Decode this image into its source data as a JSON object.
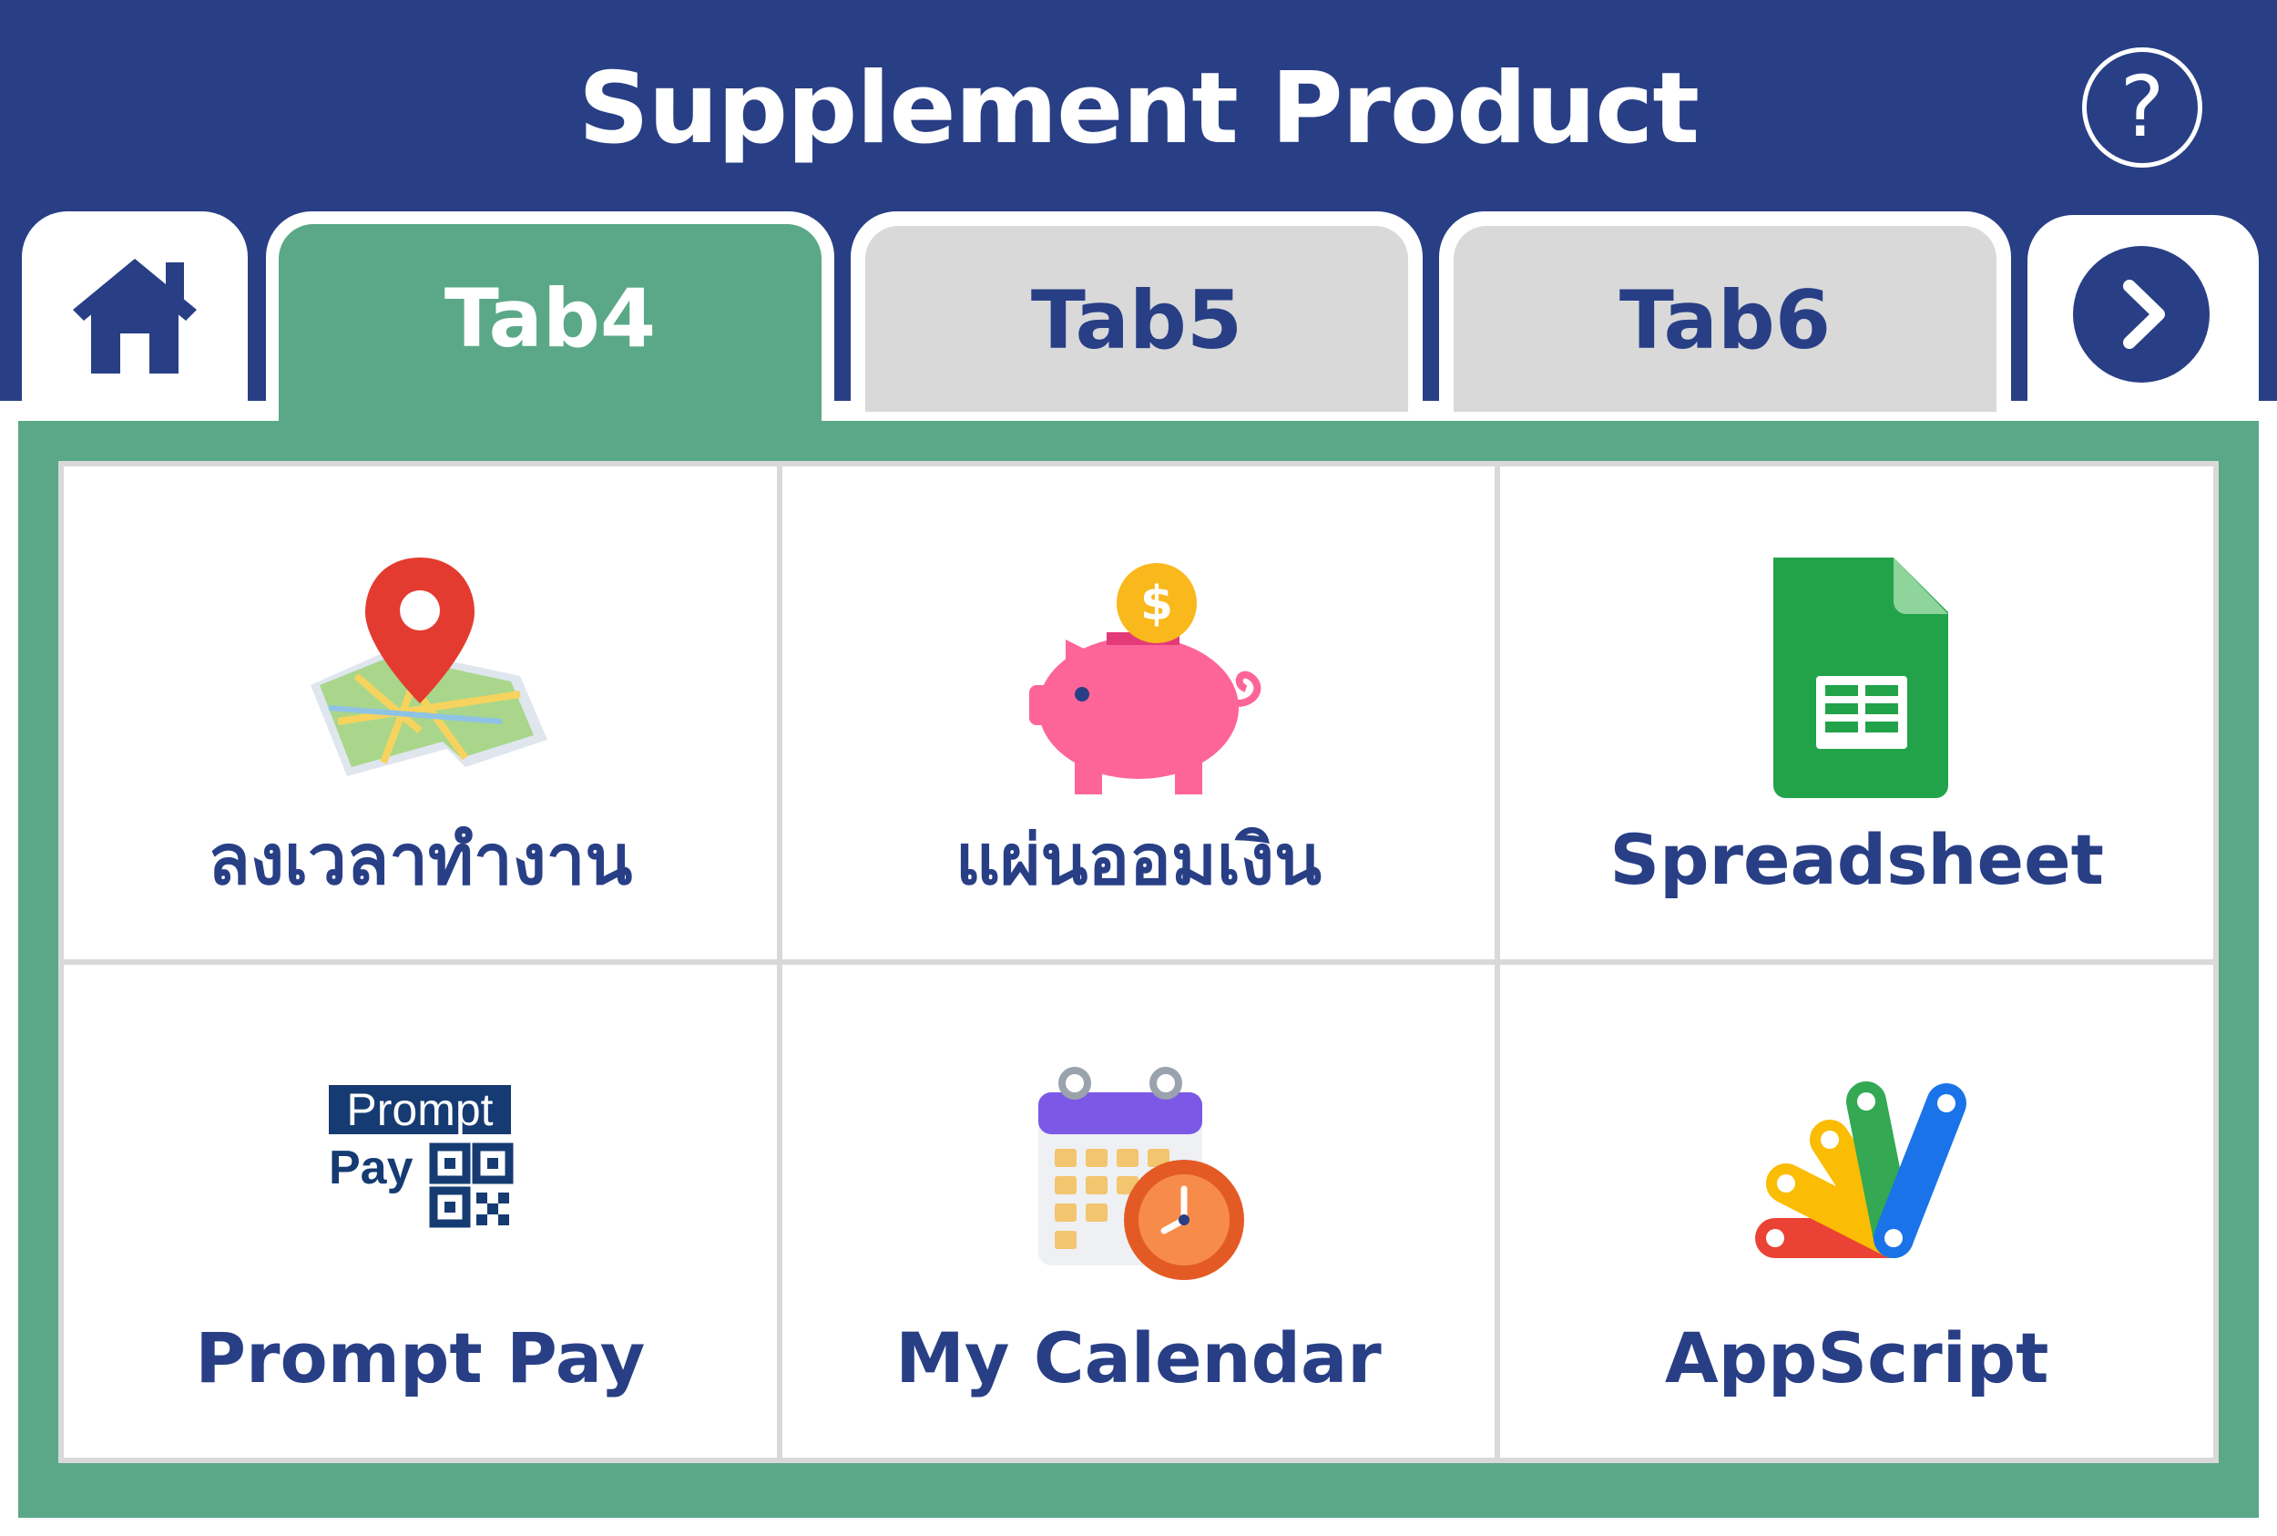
{
  "header": {
    "title": "Supplement Product",
    "help_icon": "question-circle-icon",
    "help_glyph": "?"
  },
  "tabs": [
    {
      "label": "Tab4",
      "state": "active"
    },
    {
      "label": "Tab5",
      "state": "inactive"
    },
    {
      "label": "Tab6",
      "state": "inactive"
    }
  ],
  "nav": {
    "home_icon": "home-icon",
    "next_icon": "chevron-right-icon"
  },
  "colors": {
    "brand_blue": "#283f86",
    "accent_green": "#5aa887",
    "inactive_tab": "#d9d9d9"
  },
  "apps": [
    {
      "label": "ลงเวลาทำงาน",
      "icon": "map-pin-icon"
    },
    {
      "label": "แผ่นออมเงิน",
      "icon": "piggy-bank-icon"
    },
    {
      "label": "Spreadsheet",
      "icon": "spreadsheet-icon"
    },
    {
      "label": "Prompt Pay",
      "icon": "promptpay-qr-icon"
    },
    {
      "label": "My Calendar",
      "icon": "calendar-clock-icon"
    },
    {
      "label": "AppScript",
      "icon": "appscript-icon"
    }
  ],
  "promptpay_logo": {
    "line1": "Prompt",
    "line2": "Pay"
  }
}
